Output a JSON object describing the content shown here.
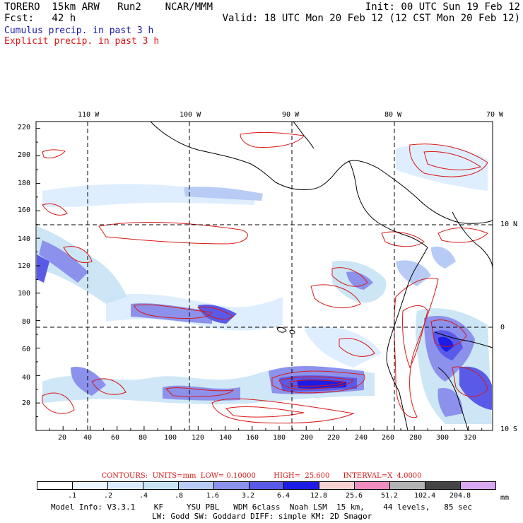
{
  "header": {
    "model": "TORERO  15km ARW   Run2    NCAR/MMM",
    "fcst": "Fcst:   42 h",
    "init": "Init: 00 UTC Sun 19 Feb 12",
    "valid": "Valid: 18 UTC Mon 20 Feb 12 (12 CST Mon 20 Feb 12)",
    "cumulus_title": "Cumulus precip. in past 3 h",
    "explicit_title": "Explicit precip. in past 3 h",
    "cumulus_color": "#1a1aa8",
    "explicit_color": "#d81818"
  },
  "map": {
    "lon_labels": [
      "110 W",
      "100 W",
      "90 W",
      "80 W",
      "70 W"
    ],
    "lat_labels": [
      "10 N",
      "0",
      "10 S"
    ],
    "x_ticks": [
      "20",
      "40",
      "60",
      "80",
      "100",
      "120",
      "140",
      "160",
      "180",
      "200",
      "220",
      "240",
      "260",
      "280",
      "300",
      "320"
    ],
    "y_ticks": [
      "20",
      "40",
      "60",
      "80",
      "100",
      "120",
      "140",
      "160",
      "180",
      "200",
      "220"
    ],
    "grid_x_range": [
      0,
      338
    ],
    "grid_y_range": [
      0,
      225
    ]
  },
  "contours": {
    "text": "CONTOURS:  UNITS=mm  LOW= 0.10000        HIGH=  25.600      INTERVAL=X  4.0000"
  },
  "colorbar": {
    "unit": "mm",
    "labels": [
      ".1",
      ".2",
      ".4",
      ".8",
      "1.6",
      "3.2",
      "6.4",
      "12.8",
      "25.6",
      "51.2",
      "102.4",
      "204.8"
    ],
    "colors": [
      "#ffffff",
      "#eef6ff",
      "#dcecff",
      "#c7e3f4",
      "#b7cbf5",
      "#8c92ec",
      "#5a5ae8",
      "#1c1ce6",
      "#f7d2d2",
      "#f08cc0",
      "#b4b4b4",
      "#444444",
      "#d9a8f2"
    ]
  },
  "footer": {
    "line1": "Model Info: V3.3.1    KF     YSU PBL   WDM 6class  Noah LSM  15 km,    44 levels,   85 sec",
    "line2": "LW: Godd SW: Goddard DIFF: simple KM: 2D Smagor"
  }
}
